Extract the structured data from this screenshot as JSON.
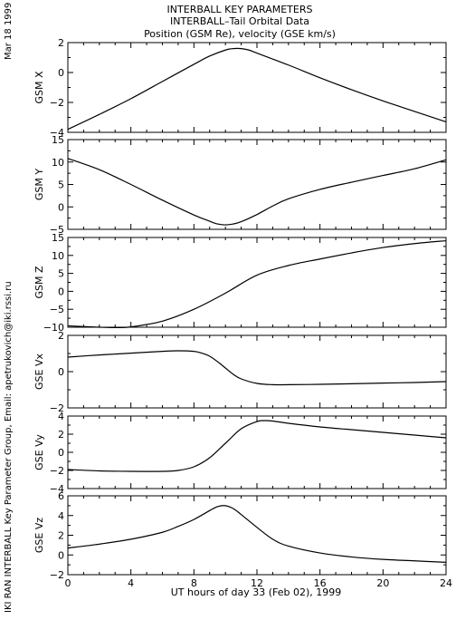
{
  "header": {
    "line1": "INTERBALL KEY PARAMETERS",
    "line2": "INTERBALL–Tail Orbital Data",
    "line3": "Position (GSM Re), velocity (GSE km/s)"
  },
  "side_date": "Mar 18 1999",
  "side_credit": "IKI RAN INTERBALL Key Parameter Group, Email: apetrukovich@iki.rssi.ru",
  "chart_data": {
    "type": "line",
    "xlabel": "UT hours of day  33 (Feb 02), 1999",
    "xlim": [
      0,
      24
    ],
    "xticks": [
      "0",
      "4",
      "8",
      "12",
      "16",
      "20",
      "24"
    ],
    "grid": false,
    "panels": [
      {
        "ylabel": "GSM X",
        "ylim": [
          -4,
          2
        ],
        "yticks": [
          "2",
          "0",
          "−2",
          "−4"
        ],
        "x": [
          0,
          2,
          4,
          6,
          8,
          9,
          10,
          10.5,
          11,
          11.5,
          12,
          14,
          16,
          18,
          20,
          22,
          24
        ],
        "y": [
          -3.8,
          -2.8,
          -1.75,
          -0.6,
          0.55,
          1.1,
          1.5,
          1.6,
          1.6,
          1.5,
          1.3,
          0.5,
          -0.35,
          -1.15,
          -1.9,
          -2.6,
          -3.3
        ]
      },
      {
        "ylabel": "GSM Y",
        "ylim": [
          -5,
          15
        ],
        "yticks": [
          "15",
          "10",
          "5",
          "0",
          "−5"
        ],
        "x": [
          0,
          2,
          4,
          6,
          8,
          9,
          9.5,
          10,
          10.5,
          11,
          12,
          13,
          14,
          16,
          18,
          20,
          22,
          24
        ],
        "y": [
          10.8,
          8.3,
          5.0,
          1.5,
          -1.8,
          -3.2,
          -3.8,
          -4.0,
          -3.8,
          -3.3,
          -1.7,
          0.2,
          1.8,
          3.9,
          5.5,
          7.0,
          8.5,
          10.5
        ]
      },
      {
        "ylabel": "GSM Z",
        "ylim": [
          -10,
          15
        ],
        "yticks": [
          "15",
          "10",
          "5",
          "0",
          "−5",
          "−10"
        ],
        "x": [
          0,
          2,
          3,
          4,
          6,
          8,
          10,
          12,
          14,
          16,
          18,
          20,
          22,
          24
        ],
        "y": [
          -9.6,
          -10.0,
          -10.1,
          -9.9,
          -8.3,
          -5.0,
          -0.5,
          4.5,
          7.2,
          9.0,
          10.7,
          12.2,
          13.3,
          14.1
        ]
      },
      {
        "ylabel": "GSE Vx",
        "ylim": [
          -2,
          2
        ],
        "yticks": [
          "2",
          "0",
          "−2"
        ],
        "x": [
          0,
          2,
          4,
          6,
          7,
          8,
          8.5,
          9,
          9.5,
          10,
          10.5,
          11,
          12,
          13,
          14,
          16,
          18,
          20,
          22,
          24
        ],
        "y": [
          0.8,
          0.92,
          1.02,
          1.12,
          1.15,
          1.12,
          1.02,
          0.85,
          0.55,
          0.2,
          -0.15,
          -0.4,
          -0.65,
          -0.72,
          -0.72,
          -0.7,
          -0.67,
          -0.63,
          -0.6,
          -0.55
        ]
      },
      {
        "ylabel": "GSE Vy",
        "ylim": [
          -4,
          4
        ],
        "yticks": [
          "4",
          "2",
          "0",
          "−2",
          "−4"
        ],
        "x": [
          0,
          2,
          4,
          6,
          7,
          8,
          9,
          10,
          11,
          12,
          12.5,
          13,
          14,
          16,
          18,
          20,
          22,
          24
        ],
        "y": [
          -1.9,
          -2.05,
          -2.1,
          -2.1,
          -2.0,
          -1.6,
          -0.6,
          1.0,
          2.6,
          3.4,
          3.5,
          3.45,
          3.2,
          2.8,
          2.5,
          2.2,
          1.9,
          1.6
        ]
      },
      {
        "ylabel": "GSE Vz",
        "ylim": [
          -2,
          6
        ],
        "yticks": [
          "6",
          "4",
          "2",
          "0",
          "−2"
        ],
        "x": [
          0,
          2,
          4,
          6,
          7,
          8,
          9,
          9.5,
          10,
          10.5,
          11,
          12,
          13,
          14,
          16,
          18,
          20,
          22,
          24
        ],
        "y": [
          0.7,
          1.1,
          1.6,
          2.3,
          2.9,
          3.6,
          4.5,
          4.9,
          5.0,
          4.7,
          4.1,
          2.8,
          1.6,
          0.9,
          0.2,
          -0.2,
          -0.45,
          -0.6,
          -0.75
        ]
      }
    ]
  }
}
